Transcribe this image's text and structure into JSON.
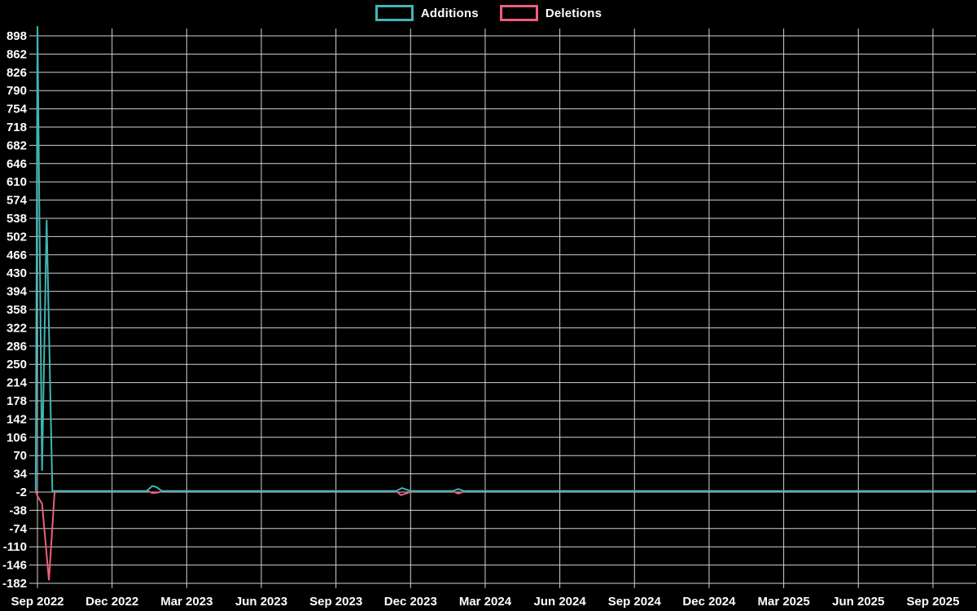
{
  "chart_data": {
    "type": "line",
    "title": "",
    "xlabel": "",
    "ylabel": "",
    "background_color": "#000000",
    "grid": true,
    "grid_color": "#d2d2d2",
    "text_color": "#ffffff",
    "legend_position": "top-center",
    "x_tick_labels": [
      "Sep 2022",
      "Dec 2022",
      "Mar 2023",
      "Jun 2023",
      "Sep 2023",
      "Dec 2023",
      "Mar 2024",
      "Jun 2024",
      "Sep 2024",
      "Dec 2024",
      "Mar 2025",
      "Jun 2025",
      "Sep 2025"
    ],
    "weeks_per_x_tick": 13,
    "y_ticks": [
      898,
      862,
      826,
      790,
      754,
      718,
      682,
      646,
      610,
      574,
      538,
      502,
      466,
      430,
      394,
      358,
      322,
      286,
      250,
      214,
      178,
      142,
      106,
      70,
      34,
      -2,
      -38,
      -74,
      -110,
      -146,
      -182
    ],
    "ylim": [
      -196,
      922
    ],
    "series": [
      {
        "name": "Additions",
        "color": "#40b5b5",
        "points": [
          [
            -0.3,
            0
          ],
          [
            0,
            917
          ],
          [
            0.8,
            40
          ],
          [
            1.6,
            535
          ],
          [
            2.6,
            0
          ],
          [
            19,
            0
          ],
          [
            20,
            10
          ],
          [
            20.7,
            8
          ],
          [
            21.7,
            0
          ],
          [
            62.5,
            0
          ],
          [
            63.5,
            6
          ],
          [
            64.3,
            3
          ],
          [
            65,
            0
          ],
          [
            72.3,
            0
          ],
          [
            73.3,
            4
          ],
          [
            74.3,
            0
          ],
          [
            163.6,
            0
          ]
        ]
      },
      {
        "name": "Deletions",
        "color": "#ee5e7d",
        "points": [
          [
            -0.3,
            0
          ],
          [
            0,
            -10
          ],
          [
            0.8,
            -25
          ],
          [
            2,
            -176
          ],
          [
            3,
            0
          ],
          [
            19.3,
            0
          ],
          [
            20,
            -4
          ],
          [
            21,
            -3
          ],
          [
            21.7,
            0
          ],
          [
            62.5,
            0
          ],
          [
            63.3,
            -8
          ],
          [
            64.5,
            -4
          ],
          [
            65.2,
            0
          ],
          [
            72.3,
            0
          ],
          [
            73.3,
            -5
          ],
          [
            74.5,
            0
          ],
          [
            163.6,
            0
          ]
        ]
      }
    ]
  }
}
